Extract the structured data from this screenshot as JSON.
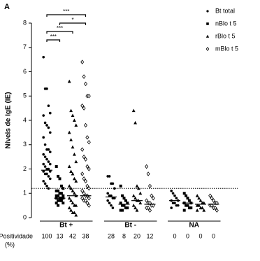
{
  "chart_data": {
    "type": "dot",
    "panel_label": "A",
    "y_label": "Níveis de IgE (IE)",
    "ylim": [
      0,
      8
    ],
    "yticks": [
      0,
      1,
      2,
      3,
      4,
      5,
      6,
      7,
      8
    ],
    "reference_line": 1.2,
    "groups": [
      "Bt +",
      "Bt -",
      "NA"
    ],
    "positivity_label": [
      "Positividade",
      "(%)"
    ],
    "legend": "upper right",
    "series": [
      {
        "name": "Bt total",
        "marker": "circle",
        "color": "#000000",
        "values": [
          [
            6.6,
            5.3,
            5.3,
            4.6,
            4.3,
            4.2,
            3.9,
            3.8,
            3.7,
            3.5,
            3.3,
            3.0,
            2.8,
            2.8,
            2.7,
            2.6,
            2.5,
            2.4,
            2.3,
            2.2,
            2.2,
            2.1,
            2.0,
            2.0,
            1.9,
            1.9,
            1.8,
            1.8,
            1.7,
            1.6,
            1.5,
            1.4,
            1.3,
            1.2
          ],
          [
            1.7,
            1.7,
            1.4,
            1.4,
            1.2,
            1.0,
            0.9,
            0.9,
            0.8,
            0.8,
            0.7,
            0.6,
            0.5,
            0.4
          ],
          [
            1.1,
            1.0,
            0.9,
            0.8,
            0.7,
            0.7,
            0.6,
            0.6,
            0.5,
            0.5,
            0.4
          ]
        ],
        "medians": [
          1.95,
          0.85,
          0.7
        ],
        "positivity": [
          100,
          28,
          0
        ]
      },
      {
        "name": "nBlo t 5",
        "marker": "square",
        "color": "#000000",
        "values": [
          [
            2.1,
            1.7,
            1.6,
            1.3,
            1.2,
            1.1,
            1.1,
            1.0,
            1.0,
            0.9,
            0.9,
            0.9,
            0.8,
            0.8,
            0.8,
            0.8,
            0.7,
            0.7,
            0.7,
            0.6,
            0.6,
            0.5
          ],
          [
            1.3,
            0.9,
            0.8,
            0.7,
            0.6,
            0.6,
            0.5,
            0.5,
            0.4,
            0.4,
            0.3,
            0.3
          ],
          [
            1.0,
            0.9,
            0.8,
            0.7,
            0.6,
            0.6,
            0.5,
            0.5,
            0.4,
            0.4,
            0.3
          ]
        ],
        "medians": [
          0.8,
          0.55,
          0.6
        ],
        "positivity": [
          13,
          8,
          0
        ]
      },
      {
        "name": "rBlo t 5",
        "marker": "triangle",
        "color": "#000000",
        "values": [
          [
            5.6,
            4.4,
            4.2,
            4.0,
            3.8,
            3.5,
            3.2,
            2.9,
            2.6,
            2.3,
            2.1,
            1.9,
            1.8,
            1.6,
            1.5,
            1.3,
            1.2,
            1.1,
            1.0,
            0.9,
            0.8,
            0.7,
            0.6,
            0.5,
            0.5,
            0.4,
            0.3,
            0.2,
            0.2,
            0.1
          ],
          [
            4.4,
            3.9,
            1.3,
            1.2,
            1.0,
            0.9,
            0.8,
            0.7,
            0.7,
            0.6,
            0.5,
            0.4,
            0.3
          ],
          [
            0.9,
            0.8,
            0.7,
            0.6,
            0.6,
            0.5,
            0.5,
            0.4,
            0.4,
            0.3,
            0.3
          ]
        ],
        "medians": [
          0.9,
          0.7,
          0.55
        ],
        "positivity": [
          42,
          20,
          0
        ]
      },
      {
        "name": "mBlo t 5",
        "marker": "diamond",
        "color": "#000000",
        "values": [
          [
            6.4,
            5.8,
            5.5,
            5.0,
            5.0,
            4.6,
            4.5,
            3.8,
            3.3,
            3.1,
            2.8,
            2.5,
            2.4,
            2.1,
            2.0,
            1.8,
            1.6,
            1.5,
            1.3,
            1.2,
            1.1,
            1.0,
            0.9,
            0.9,
            0.8,
            0.8,
            0.7,
            0.7,
            0.6,
            0.5
          ],
          [
            2.1,
            1.8,
            1.3,
            0.9,
            0.8,
            0.7,
            0.6,
            0.6,
            0.5,
            0.5,
            0.4,
            0.4,
            0.3
          ],
          [
            0.9,
            0.8,
            0.7,
            0.6,
            0.6,
            0.5,
            0.5,
            0.4,
            0.4,
            0.3
          ]
        ],
        "medians": [
          0.9,
          0.55,
          0.55
        ],
        "positivity": [
          38,
          12,
          0
        ]
      }
    ],
    "annotations": [
      {
        "label": "***",
        "from": 0,
        "to": 3
      },
      {
        "label": "*",
        "from": 1,
        "to": 3
      },
      {
        "label": "***",
        "from": 0,
        "to": 2
      },
      {
        "label": "***",
        "from": 0,
        "to": 1
      }
    ]
  }
}
